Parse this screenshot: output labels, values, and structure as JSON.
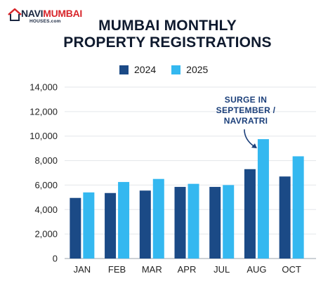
{
  "logo": {
    "name_part1": "NAVI",
    "name_part2": "MUMBAI",
    "sub": "HOUSES.com"
  },
  "chart_data": {
    "type": "bar",
    "title_line1": "MUMBAI MONTHLY",
    "title_line2": "PROPERTY REGISTRATIONS",
    "categories": [
      "JAN",
      "FEB",
      "MAR",
      "APR",
      "JUL",
      "AUG",
      "OCT"
    ],
    "series": [
      {
        "name": "2024",
        "color": "#1b4a86",
        "values": [
          4950,
          5350,
          5550,
          5850,
          5850,
          7300,
          6700
        ]
      },
      {
        "name": "2025",
        "color": "#34b8f0",
        "values": [
          5400,
          6250,
          6500,
          6100,
          6000,
          9750,
          8350
        ]
      }
    ],
    "ylim": [
      0,
      14000
    ],
    "yticks": [
      0,
      2000,
      4000,
      6000,
      8000,
      10000,
      12000,
      14000
    ],
    "ytick_labels": [
      "0",
      "2,000",
      "4,000",
      "6,000",
      "8,000",
      "10,000",
      "12,000",
      "14,000"
    ],
    "grid": true,
    "legend_position": "top",
    "annotation": {
      "text_line1": "SURGE IN",
      "text_line2": "SEPTEMBER /",
      "text_line3": "NAVRATRI",
      "target_category": "AUG",
      "target_series": "2025"
    }
  }
}
